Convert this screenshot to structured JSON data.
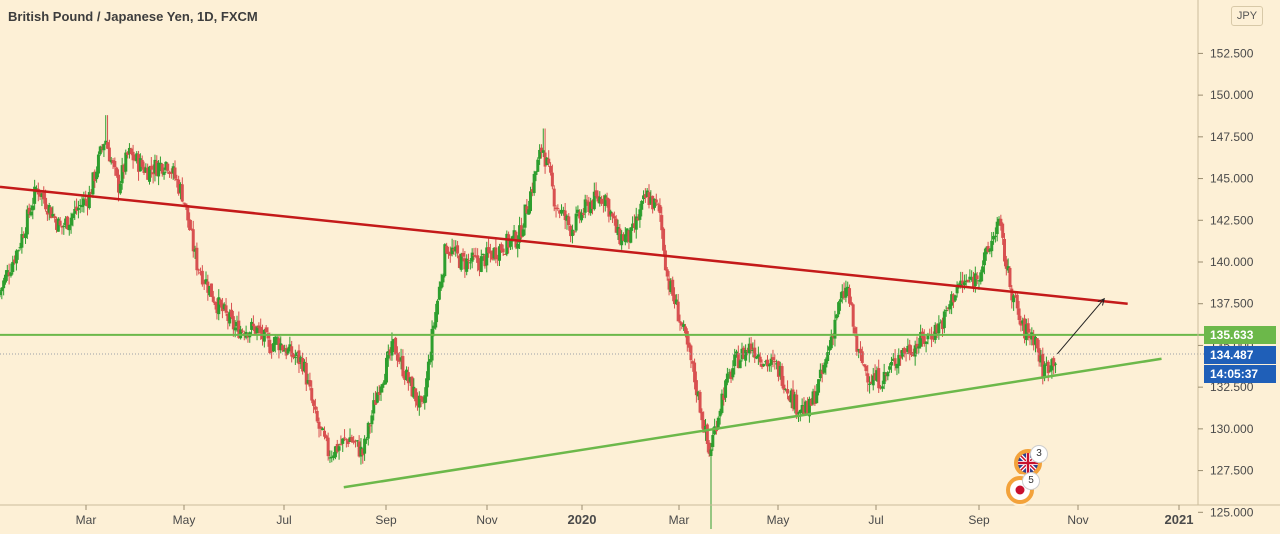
{
  "header": {
    "title": "British Pound / Japanese Yen, 1D, FXCM",
    "currency": "JPY"
  },
  "colors": {
    "background": "#fdf0d6",
    "up": "#2e9e2e",
    "down": "#d85050",
    "resistance": "#c41a1a",
    "support": "#6cb84a",
    "tag_level": "#6cb84a",
    "tag_price": "#1f5fb8",
    "tag_time": "#1f5fb8"
  },
  "price_tags": {
    "level": "135.633",
    "price": "134.487",
    "countdown": "14:05:37"
  },
  "events": [
    {
      "flag": "uk-flag-icon",
      "count": "3"
    },
    {
      "flag": "japan-flag-icon",
      "count": "5"
    }
  ],
  "chart_data": {
    "type": "candlestick",
    "title": "British Pound / Japanese Yen, 1D, FXCM",
    "x_ticks": [
      "Mar",
      "May",
      "Jul",
      "Sep",
      "Nov",
      "2020",
      "Mar",
      "May",
      "Jul",
      "Sep",
      "Nov",
      "2021"
    ],
    "y_ticks": [
      "125.000",
      "127.500",
      "130.000",
      "132.500",
      "135.000",
      "137.500",
      "140.000",
      "142.500",
      "145.000",
      "147.500",
      "150.000",
      "152.500"
    ],
    "ylim": [
      123.7,
      155.7
    ],
    "y_axis_position": "right",
    "grid": false,
    "price_path": [
      [
        0,
        138.0
      ],
      [
        0.8,
        141.0
      ],
      [
        1.5,
        144.5
      ],
      [
        2.4,
        142.0
      ],
      [
        3.5,
        144.0
      ],
      [
        4.1,
        147.5
      ],
      [
        4.6,
        144.5
      ],
      [
        5.0,
        146.5
      ],
      [
        5.7,
        145.5
      ],
      [
        6.5,
        146.0
      ],
      [
        7.1,
        144.0
      ],
      [
        7.6,
        140.0
      ],
      [
        8.4,
        137.5
      ],
      [
        9.1,
        136.0
      ],
      [
        9.9,
        136.0
      ],
      [
        10.4,
        135.0
      ],
      [
        10.7,
        135.3
      ],
      [
        11.2,
        134.5
      ],
      [
        11.7,
        134.0
      ],
      [
        12.2,
        130.5
      ],
      [
        12.7,
        128.5
      ],
      [
        13.5,
        129.5
      ],
      [
        14.0,
        128.5
      ],
      [
        14.6,
        132.5
      ],
      [
        15.2,
        135.0
      ],
      [
        15.7,
        133.0
      ],
      [
        16.3,
        131.0
      ],
      [
        16.7,
        136.0
      ],
      [
        17.2,
        141.0
      ],
      [
        17.8,
        140.0
      ],
      [
        18.5,
        140.0
      ],
      [
        19.4,
        141.0
      ],
      [
        20.0,
        141.5
      ],
      [
        20.5,
        144.5
      ],
      [
        20.9,
        147.0
      ],
      [
        21.4,
        143.5
      ],
      [
        22.0,
        142.0
      ],
      [
        22.7,
        143.5
      ],
      [
        23.3,
        144.0
      ],
      [
        23.8,
        141.5
      ],
      [
        24.3,
        141.5
      ],
      [
        24.9,
        144.0
      ],
      [
        25.4,
        143.0
      ],
      [
        25.7,
        139.0
      ],
      [
        26.1,
        137.0
      ],
      [
        26.6,
        134.0
      ],
      [
        27.0,
        131.0
      ],
      [
        27.3,
        128.5
      ],
      [
        27.8,
        132.0
      ],
      [
        28.3,
        134.0
      ],
      [
        28.9,
        135.0
      ],
      [
        29.5,
        134.0
      ],
      [
        30.0,
        133.5
      ],
      [
        30.6,
        131.5
      ],
      [
        31.1,
        131.0
      ],
      [
        31.7,
        133.5
      ],
      [
        32.2,
        137.0
      ],
      [
        32.6,
        138.5
      ],
      [
        33.0,
        134.5
      ],
      [
        33.5,
        133.0
      ],
      [
        34.0,
        133.0
      ],
      [
        34.6,
        134.5
      ],
      [
        35.2,
        135.0
      ],
      [
        35.7,
        135.5
      ],
      [
        36.3,
        136.5
      ],
      [
        36.8,
        138.5
      ],
      [
        37.5,
        139.0
      ],
      [
        38.0,
        140.5
      ],
      [
        38.4,
        142.5
      ],
      [
        38.8,
        139.0
      ],
      [
        39.3,
        136.0
      ],
      [
        39.8,
        135.5
      ],
      [
        40.1,
        133.5
      ],
      [
        40.6,
        134.3
      ]
    ],
    "wick_extremes": [
      [
        4.1,
        148.8
      ],
      [
        20.9,
        148.0
      ],
      [
        27.3,
        124.0
      ],
      [
        38.3,
        142.7
      ]
    ],
    "resistance_line": [
      [
        0,
        144.5
      ],
      [
        43.3,
        137.5
      ]
    ],
    "support_line": [
      [
        13.2,
        126.5
      ],
      [
        44.6,
        134.2
      ]
    ],
    "horizontal_level": 135.633,
    "projection_arrow": [
      [
        40.6,
        134.5
      ],
      [
        42.4,
        137.8
      ]
    ]
  }
}
